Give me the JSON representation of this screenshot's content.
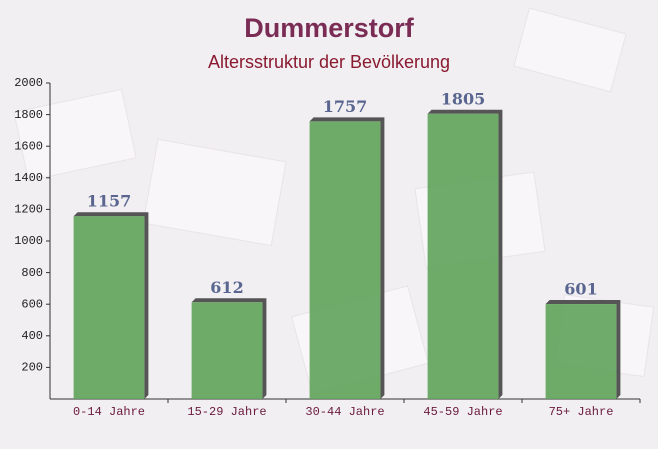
{
  "chart_data": {
    "type": "bar",
    "title": "Dummerstorf",
    "subtitle": "Altersstruktur der Bevölkerung",
    "categories": [
      "0-14 Jahre",
      "15-29 Jahre",
      "30-44 Jahre",
      "45-59 Jahre",
      "75+ Jahre"
    ],
    "values": [
      1157,
      612,
      1757,
      1805,
      601
    ],
    "color": "#5fa35a",
    "ylim": [
      0,
      2000
    ],
    "yticks": [
      200,
      400,
      600,
      800,
      1000,
      1200,
      1400,
      1600,
      1800,
      2000
    ],
    "grid": false
  }
}
